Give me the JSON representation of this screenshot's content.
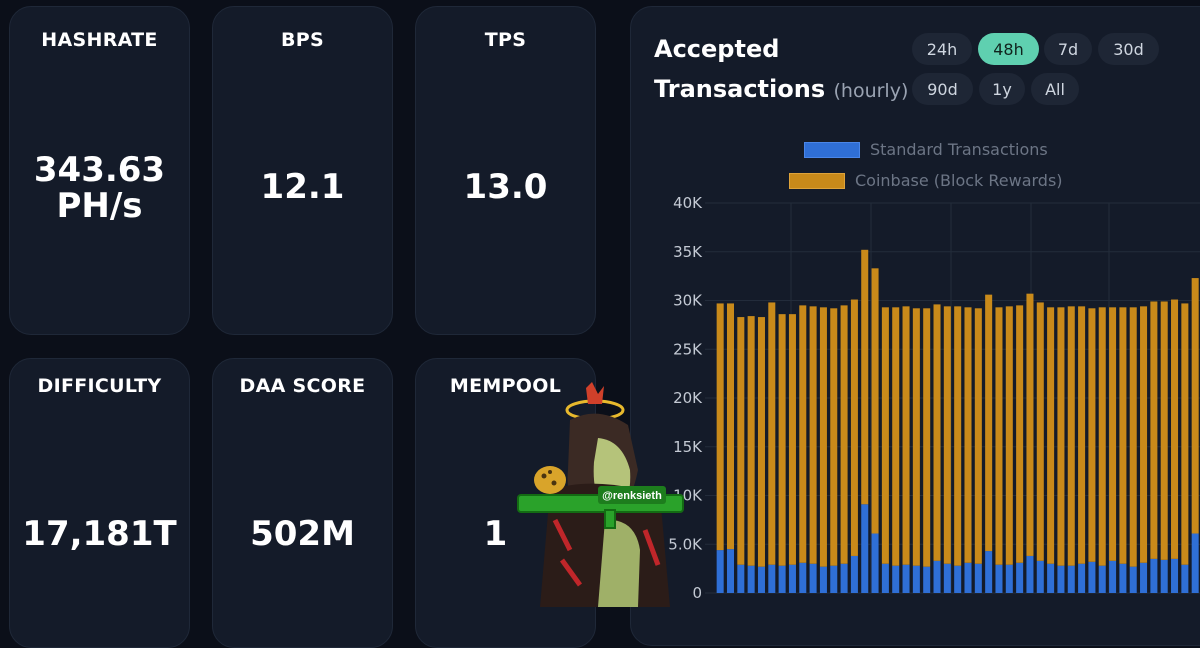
{
  "stats": [
    {
      "label": "HASHRATE",
      "value_line1": "343.63",
      "value_line2": "PH/s"
    },
    {
      "label": "BPS",
      "value": "12.1"
    },
    {
      "label": "TPS",
      "value": "13.0"
    },
    {
      "label": "DIFFICULTY",
      "value": "17,181T"
    },
    {
      "label": "DAA SCORE",
      "value": "502M"
    },
    {
      "label": "MEMPOOL",
      "value": "1"
    }
  ],
  "chart_panel": {
    "title_line1": "Accepted",
    "title_line2": "Transactions",
    "title_suffix": "(hourly)",
    "ranges": [
      "24h",
      "48h",
      "7d",
      "30d",
      "90d",
      "1y",
      "All"
    ],
    "active_range": "48h"
  },
  "overlay": {
    "handle": "@renksieth"
  },
  "colors": {
    "standard": "#2f6fd6",
    "coinbase": "#c98a1a",
    "accent": "#5fd0b0"
  },
  "chart_data": {
    "type": "bar",
    "stacked": true,
    "legend": [
      "Standard Transactions",
      "Coinbase (Block Rewards)"
    ],
    "legend_placement": "top-center",
    "y_ticks": [
      "0",
      "5.0K",
      "10K",
      "15K",
      "20K",
      "25K",
      "30K",
      "35K",
      "40K"
    ],
    "ylim": [
      0,
      40000
    ],
    "grid": true,
    "series": [
      {
        "name": "Standard Transactions",
        "values": [
          4400,
          4500,
          2900,
          2800,
          2700,
          2900,
          2800,
          2900,
          3100,
          3000,
          2700,
          2800,
          3000,
          3800,
          9100,
          6100,
          3000,
          2800,
          2900,
          2800,
          2700,
          3300,
          3000,
          2800,
          3100,
          3000,
          4300,
          2900,
          2900,
          3100,
          3800,
          3300,
          3000,
          2800,
          2800,
          3000,
          3200,
          2800,
          3300,
          3000,
          2700,
          3100,
          3500,
          3400,
          3500,
          2900,
          6100,
          3300,
          2900
        ]
      },
      {
        "name": "Coinbase (Block Rewards)",
        "values": [
          25300,
          25200,
          25400,
          25600,
          25600,
          26900,
          25800,
          25700,
          26400,
          26400,
          26600,
          26400,
          26500,
          26300,
          26100,
          27200,
          26300,
          26500,
          26500,
          26400,
          26500,
          26300,
          26400,
          26600,
          26200,
          26200,
          26300,
          26400,
          26500,
          26400,
          26900,
          26500,
          26300,
          26500,
          26600,
          26400,
          26000,
          26500,
          26000,
          26300,
          26600,
          26300,
          26400,
          26500,
          26600,
          26800,
          26200,
          26300,
          26400
        ]
      }
    ]
  }
}
